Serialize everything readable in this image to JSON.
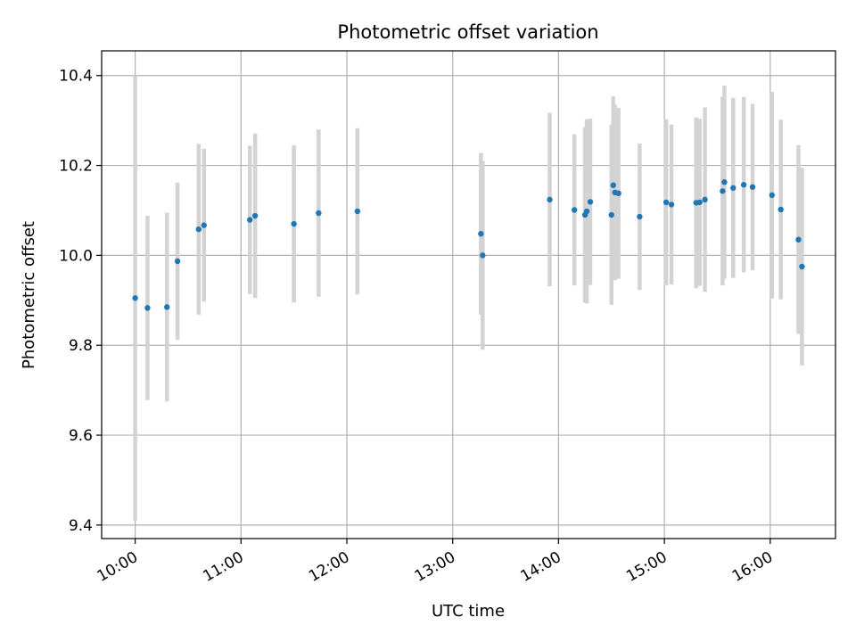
{
  "chart_data": {
    "type": "scatter",
    "title": "Photometric offset variation",
    "xlabel": "UTC time",
    "ylabel": "Photometric offset",
    "x_ticks": [
      "10:00",
      "11:00",
      "12:00",
      "13:00",
      "14:00",
      "15:00",
      "16:00"
    ],
    "y_ticks": [
      "9.4",
      "9.6",
      "9.8",
      "10.0",
      "10.2",
      "10.4"
    ],
    "xlim": [
      "09:41",
      "16:37"
    ],
    "ylim": [
      9.37,
      10.455
    ],
    "grid": true,
    "marker_color": "#1f77b4",
    "errorbar_color": "#d3d3d3",
    "points": [
      {
        "t": "10:00",
        "y": 9.905,
        "yerr": 0.495
      },
      {
        "t": "10:07",
        "y": 9.883,
        "yerr": 0.205
      },
      {
        "t": "10:18",
        "y": 9.885,
        "yerr": 0.21
      },
      {
        "t": "10:24",
        "y": 9.987,
        "yerr": 0.175
      },
      {
        "t": "10:36",
        "y": 10.058,
        "yerr": 0.19
      },
      {
        "t": "10:39",
        "y": 10.067,
        "yerr": 0.17
      },
      {
        "t": "11:05",
        "y": 10.079,
        "yerr": 0.165
      },
      {
        "t": "11:08",
        "y": 10.088,
        "yerr": 0.183
      },
      {
        "t": "11:30",
        "y": 10.07,
        "yerr": 0.175
      },
      {
        "t": "11:44",
        "y": 10.094,
        "yerr": 0.186
      },
      {
        "t": "12:06",
        "y": 10.098,
        "yerr": 0.185
      },
      {
        "t": "13:16",
        "y": 10.048,
        "yerr": 0.18
      },
      {
        "t": "13:17",
        "y": 10.0,
        "yerr": 0.21
      },
      {
        "t": "13:55",
        "y": 10.124,
        "yerr": 0.193
      },
      {
        "t": "14:09",
        "y": 10.101,
        "yerr": 0.168
      },
      {
        "t": "14:15",
        "y": 10.09,
        "yerr": 0.195
      },
      {
        "t": "14:16",
        "y": 10.098,
        "yerr": 0.205
      },
      {
        "t": "14:18",
        "y": 10.119,
        "yerr": 0.185
      },
      {
        "t": "14:30",
        "y": 10.09,
        "yerr": 0.2
      },
      {
        "t": "14:31",
        "y": 10.156,
        "yerr": 0.198
      },
      {
        "t": "14:32",
        "y": 10.14,
        "yerr": 0.195
      },
      {
        "t": "14:34",
        "y": 10.138,
        "yerr": 0.19
      },
      {
        "t": "14:46",
        "y": 10.086,
        "yerr": 0.163
      },
      {
        "t": "15:01",
        "y": 10.118,
        "yerr": 0.185
      },
      {
        "t": "15:04",
        "y": 10.113,
        "yerr": 0.178
      },
      {
        "t": "15:18",
        "y": 10.117,
        "yerr": 0.19
      },
      {
        "t": "15:20",
        "y": 10.118,
        "yerr": 0.186
      },
      {
        "t": "15:23",
        "y": 10.124,
        "yerr": 0.205
      },
      {
        "t": "15:33",
        "y": 10.143,
        "yerr": 0.21
      },
      {
        "t": "15:34",
        "y": 10.163,
        "yerr": 0.215
      },
      {
        "t": "15:39",
        "y": 10.15,
        "yerr": 0.2
      },
      {
        "t": "15:45",
        "y": 10.157,
        "yerr": 0.195
      },
      {
        "t": "15:50",
        "y": 10.152,
        "yerr": 0.185
      },
      {
        "t": "16:01",
        "y": 10.134,
        "yerr": 0.23
      },
      {
        "t": "16:06",
        "y": 10.102,
        "yerr": 0.2
      },
      {
        "t": "16:16",
        "y": 10.035,
        "yerr": 0.21
      },
      {
        "t": "16:18",
        "y": 9.975,
        "yerr": 0.22
      }
    ]
  }
}
